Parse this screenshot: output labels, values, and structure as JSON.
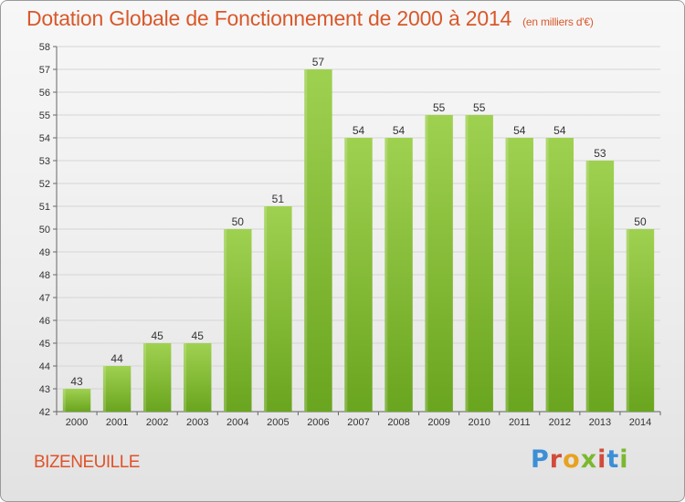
{
  "header": {
    "title": "Dotation Globale de Fonctionnement de 2000 à 2014",
    "subtitle": "(en milliers d'€)"
  },
  "footer": {
    "place": "BIZENEUILLE",
    "logo": "Proxiti"
  },
  "colors": {
    "bar_top": "#9fd150",
    "bar_bottom": "#6aa51f",
    "title": "#d9582a",
    "grid": "#d5d5d5"
  },
  "chart_data": {
    "type": "bar",
    "title": "Dotation Globale de Fonctionnement de 2000 à 2014",
    "subtitle": "(en milliers d'€)",
    "categories": [
      "2000",
      "2001",
      "2002",
      "2003",
      "2004",
      "2005",
      "2006",
      "2007",
      "2008",
      "2009",
      "2010",
      "2011",
      "2012",
      "2013",
      "2014"
    ],
    "values": [
      43,
      44,
      45,
      45,
      50,
      51,
      57,
      54,
      54,
      55,
      55,
      54,
      54,
      53,
      50
    ],
    "ylim": [
      42,
      58
    ],
    "yticks": [
      42,
      43,
      44,
      45,
      46,
      47,
      48,
      49,
      50,
      51,
      52,
      53,
      54,
      55,
      56,
      57,
      58
    ],
    "grid": true,
    "data_labels": true
  }
}
